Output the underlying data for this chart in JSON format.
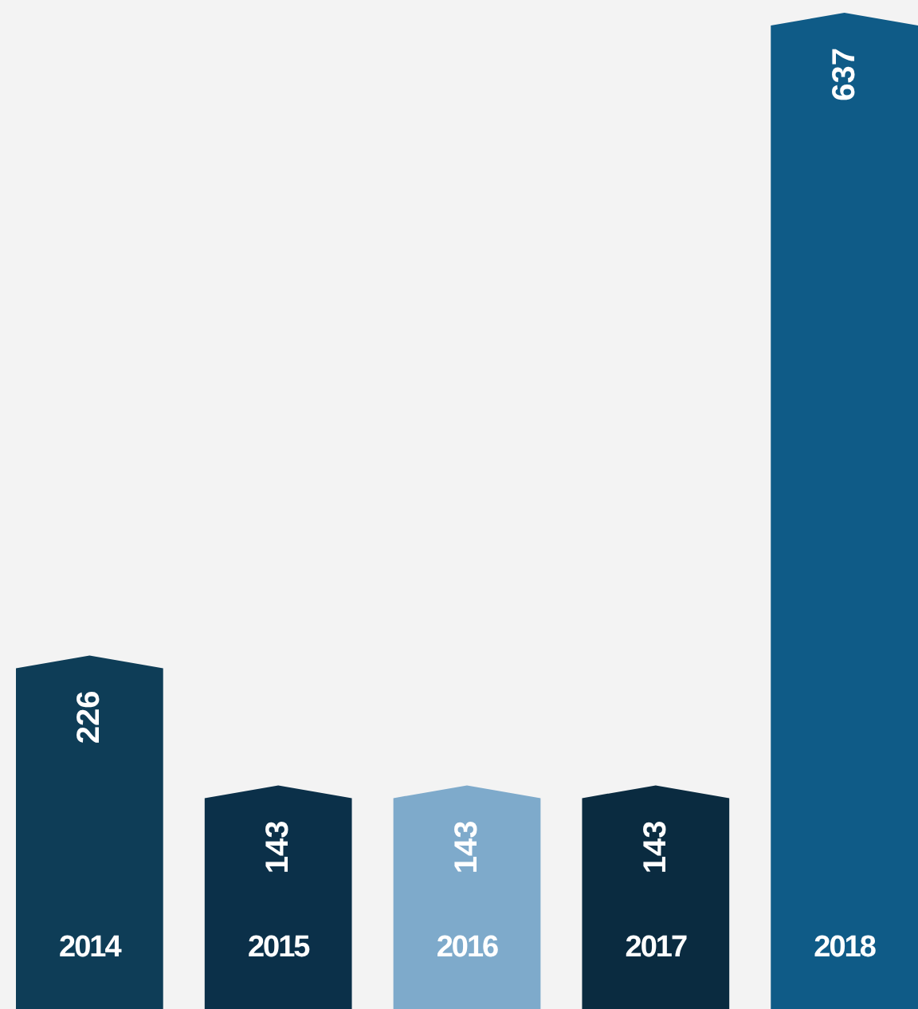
{
  "chart_data": {
    "type": "bar",
    "categories": [
      "2014",
      "2015",
      "2016",
      "2017",
      "2018"
    ],
    "values": [
      226,
      143,
      143,
      143,
      637
    ],
    "colors": [
      "#0e3d57",
      "#0b3049",
      "#7eaacb",
      "#0a2b40",
      "#0f5b87"
    ],
    "data_labels": true
  }
}
